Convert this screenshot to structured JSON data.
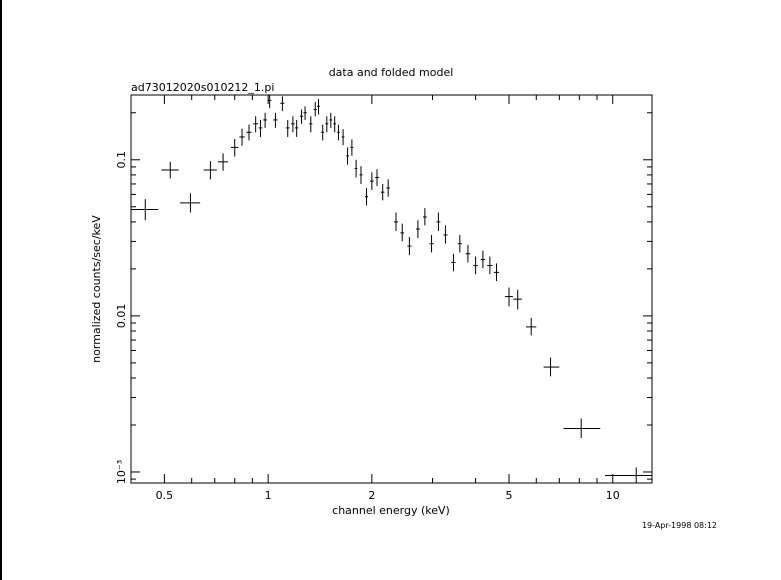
{
  "chart_data": {
    "type": "scatter",
    "title": "data and folded model",
    "subtitle": "ad73012020s010212_1.pi",
    "xlabel": "channel energy (keV)",
    "ylabel": "normalized counts/sec/keV",
    "timestamp": "19-Apr-1998 08:12",
    "x_scale": "log",
    "y_scale": "log",
    "xlim": [
      0.4,
      13
    ],
    "ylim": [
      0.00085,
      0.26
    ],
    "grid": false,
    "x_ticks": [
      {
        "value": 0.5,
        "label": "0.5"
      },
      {
        "value": 1,
        "label": "1"
      },
      {
        "value": 2,
        "label": "2"
      },
      {
        "value": 5,
        "label": "5"
      },
      {
        "value": 10,
        "label": "10"
      }
    ],
    "y_ticks": [
      {
        "value": 0.1,
        "label": "0.1"
      },
      {
        "value": 0.01,
        "label": "0.01"
      },
      {
        "value": 0.001,
        "label": "10⁻³"
      }
    ],
    "series": [
      {
        "points": [
          {
            "x": 0.44,
            "xerr": [
              0.4,
              0.48
            ],
            "y": 0.048,
            "yerr": [
              0.041,
              0.056
            ]
          },
          {
            "x": 0.52,
            "xerr": [
              0.49,
              0.55
            ],
            "y": 0.086,
            "yerr": [
              0.076,
              0.097
            ]
          },
          {
            "x": 0.595,
            "xerr": [
              0.555,
              0.635
            ],
            "y": 0.053,
            "yerr": [
              0.046,
              0.061
            ]
          },
          {
            "x": 0.68,
            "xerr": [
              0.65,
              0.71
            ],
            "y": 0.086,
            "yerr": [
              0.075,
              0.098
            ]
          },
          {
            "x": 0.74,
            "xerr": [
              0.715,
              0.765
            ],
            "y": 0.097,
            "yerr": [
              0.085,
              0.11
            ]
          },
          {
            "x": 0.8,
            "xerr": [
              0.78,
              0.82
            ],
            "y": 0.12,
            "yerr": [
              0.105,
              0.136
            ]
          },
          {
            "x": 0.84,
            "xerr": [
              0.825,
              0.855
            ],
            "y": 0.14,
            "yerr": [
              0.123,
              0.158
            ]
          },
          {
            "x": 0.88,
            "xerr": [
              0.865,
              0.895
            ],
            "y": 0.15,
            "yerr": [
              0.133,
              0.168
            ]
          },
          {
            "x": 0.92,
            "xerr": [
              0.905,
              0.935
            ],
            "y": 0.17,
            "yerr": [
              0.15,
              0.19
            ]
          },
          {
            "x": 0.95,
            "xerr": [
              0.938,
              0.962
            ],
            "y": 0.16,
            "yerr": [
              0.14,
              0.18
            ]
          },
          {
            "x": 0.98,
            "xerr": [
              0.968,
              0.992
            ],
            "y": 0.18,
            "yerr": [
              0.16,
              0.2
            ]
          },
          {
            "x": 1.01,
            "xerr": [
              0.998,
              1.022
            ],
            "y": 0.24,
            "yerr": [
              0.215,
              0.265
            ]
          },
          {
            "x": 1.05,
            "xerr": [
              1.035,
              1.065
            ],
            "y": 0.18,
            "yerr": [
              0.16,
              0.2
            ]
          },
          {
            "x": 1.1,
            "xerr": [
              1.085,
              1.115
            ],
            "y": 0.23,
            "yerr": [
              0.205,
              0.255
            ]
          },
          {
            "x": 1.14,
            "xerr": [
              1.126,
              1.154
            ],
            "y": 0.16,
            "yerr": [
              0.14,
              0.18
            ]
          },
          {
            "x": 1.18,
            "xerr": [
              1.166,
              1.194
            ],
            "y": 0.17,
            "yerr": [
              0.15,
              0.19
            ]
          },
          {
            "x": 1.21,
            "xerr": [
              1.197,
              1.223
            ],
            "y": 0.16,
            "yerr": [
              0.14,
              0.18
            ]
          },
          {
            "x": 1.25,
            "xerr": [
              1.236,
              1.264
            ],
            "y": 0.19,
            "yerr": [
              0.17,
              0.21
            ]
          },
          {
            "x": 1.28,
            "xerr": [
              1.266,
              1.294
            ],
            "y": 0.2,
            "yerr": [
              0.18,
              0.22
            ]
          },
          {
            "x": 1.33,
            "xerr": [
              1.316,
              1.344
            ],
            "y": 0.17,
            "yerr": [
              0.15,
              0.19
            ]
          },
          {
            "x": 1.37,
            "xerr": [
              1.356,
              1.384
            ],
            "y": 0.21,
            "yerr": [
              0.19,
              0.235
            ]
          },
          {
            "x": 1.4,
            "xerr": [
              1.386,
              1.414
            ],
            "y": 0.22,
            "yerr": [
              0.195,
              0.245
            ]
          },
          {
            "x": 1.44,
            "xerr": [
              1.426,
              1.454
            ],
            "y": 0.15,
            "yerr": [
              0.133,
              0.168
            ]
          },
          {
            "x": 1.48,
            "xerr": [
              1.466,
              1.494
            ],
            "y": 0.17,
            "yerr": [
              0.15,
              0.19
            ]
          },
          {
            "x": 1.52,
            "xerr": [
              1.506,
              1.534
            ],
            "y": 0.18,
            "yerr": [
              0.16,
              0.2
            ]
          },
          {
            "x": 1.56,
            "xerr": [
              1.546,
              1.574
            ],
            "y": 0.17,
            "yerr": [
              0.15,
              0.19
            ]
          },
          {
            "x": 1.6,
            "xerr": [
              1.585,
              1.615
            ],
            "y": 0.15,
            "yerr": [
              0.133,
              0.168
            ]
          },
          {
            "x": 1.65,
            "xerr": [
              1.635,
              1.665
            ],
            "y": 0.14,
            "yerr": [
              0.124,
              0.157
            ]
          },
          {
            "x": 1.7,
            "xerr": [
              1.684,
              1.716
            ],
            "y": 0.106,
            "yerr": [
              0.093,
              0.12
            ]
          },
          {
            "x": 1.75,
            "xerr": [
              1.734,
              1.766
            ],
            "y": 0.12,
            "yerr": [
              0.106,
              0.135
            ]
          },
          {
            "x": 1.8,
            "xerr": [
              1.783,
              1.817
            ],
            "y": 0.088,
            "yerr": [
              0.077,
              0.1
            ]
          },
          {
            "x": 1.86,
            "xerr": [
              1.842,
              1.878
            ],
            "y": 0.08,
            "yerr": [
              0.07,
              0.091
            ]
          },
          {
            "x": 1.93,
            "xerr": [
              1.91,
              1.95
            ],
            "y": 0.058,
            "yerr": [
              0.051,
              0.066
            ]
          },
          {
            "x": 2.0,
            "xerr": [
              1.975,
              2.025
            ],
            "y": 0.073,
            "yerr": [
              0.064,
              0.083
            ]
          },
          {
            "x": 2.07,
            "xerr": [
              2.045,
              2.095
            ],
            "y": 0.077,
            "yerr": [
              0.068,
              0.087
            ]
          },
          {
            "x": 2.15,
            "xerr": [
              2.125,
              2.175
            ],
            "y": 0.062,
            "yerr": [
              0.055,
              0.07
            ]
          },
          {
            "x": 2.23,
            "xerr": [
              2.205,
              2.255
            ],
            "y": 0.066,
            "yerr": [
              0.058,
              0.075
            ]
          },
          {
            "x": 2.35,
            "xerr": [
              2.32,
              2.38
            ],
            "y": 0.04,
            "yerr": [
              0.035,
              0.046
            ]
          },
          {
            "x": 2.45,
            "xerr": [
              2.42,
              2.48
            ],
            "y": 0.034,
            "yerr": [
              0.03,
              0.039
            ]
          },
          {
            "x": 2.57,
            "xerr": [
              2.535,
              2.605
            ],
            "y": 0.028,
            "yerr": [
              0.0245,
              0.032
            ]
          },
          {
            "x": 2.72,
            "xerr": [
              2.685,
              2.755
            ],
            "y": 0.036,
            "yerr": [
              0.0315,
              0.041
            ]
          },
          {
            "x": 2.85,
            "xerr": [
              2.815,
              2.885
            ],
            "y": 0.043,
            "yerr": [
              0.038,
              0.049
            ]
          },
          {
            "x": 2.98,
            "xerr": [
              2.94,
              3.02
            ],
            "y": 0.029,
            "yerr": [
              0.0255,
              0.033
            ]
          },
          {
            "x": 3.12,
            "xerr": [
              3.08,
              3.16
            ],
            "y": 0.04,
            "yerr": [
              0.035,
              0.046
            ]
          },
          {
            "x": 3.27,
            "xerr": [
              3.225,
              3.315
            ],
            "y": 0.033,
            "yerr": [
              0.029,
              0.038
            ]
          },
          {
            "x": 3.45,
            "xerr": [
              3.4,
              3.5
            ],
            "y": 0.022,
            "yerr": [
              0.0193,
              0.025
            ]
          },
          {
            "x": 3.6,
            "xerr": [
              3.55,
              3.65
            ],
            "y": 0.029,
            "yerr": [
              0.0255,
              0.033
            ]
          },
          {
            "x": 3.8,
            "xerr": [
              3.74,
              3.86
            ],
            "y": 0.025,
            "yerr": [
              0.022,
              0.0285
            ]
          },
          {
            "x": 4.0,
            "xerr": [
              3.94,
              4.06
            ],
            "y": 0.021,
            "yerr": [
              0.0185,
              0.024
            ]
          },
          {
            "x": 4.2,
            "xerr": [
              4.14,
              4.26
            ],
            "y": 0.023,
            "yerr": [
              0.0202,
              0.0262
            ]
          },
          {
            "x": 4.4,
            "xerr": [
              4.32,
              4.48
            ],
            "y": 0.021,
            "yerr": [
              0.0185,
              0.024
            ]
          },
          {
            "x": 4.6,
            "xerr": [
              4.52,
              4.68
            ],
            "y": 0.019,
            "yerr": [
              0.0167,
              0.0217
            ]
          },
          {
            "x": 5.0,
            "xerr": [
              4.87,
              5.13
            ],
            "y": 0.0133,
            "yerr": [
              0.0115,
              0.0152
            ]
          },
          {
            "x": 5.3,
            "xerr": [
              5.15,
              5.45
            ],
            "y": 0.0128,
            "yerr": [
              0.011,
              0.0147
            ]
          },
          {
            "x": 5.8,
            "xerr": [
              5.6,
              6.0
            ],
            "y": 0.0085,
            "yerr": [
              0.0075,
              0.0097
            ]
          },
          {
            "x": 6.6,
            "xerr": [
              6.3,
              7.0
            ],
            "y": 0.0047,
            "yerr": [
              0.0041,
              0.0054
            ]
          },
          {
            "x": 8.1,
            "xerr": [
              7.2,
              9.2
            ],
            "y": 0.0019,
            "yerr": [
              0.00165,
              0.0022
            ]
          },
          {
            "x": 11.7,
            "xerr": [
              9.5,
              13.0
            ],
            "y": 0.00095,
            "yerr": [
              0.00085,
              0.00107
            ]
          }
        ]
      }
    ]
  }
}
